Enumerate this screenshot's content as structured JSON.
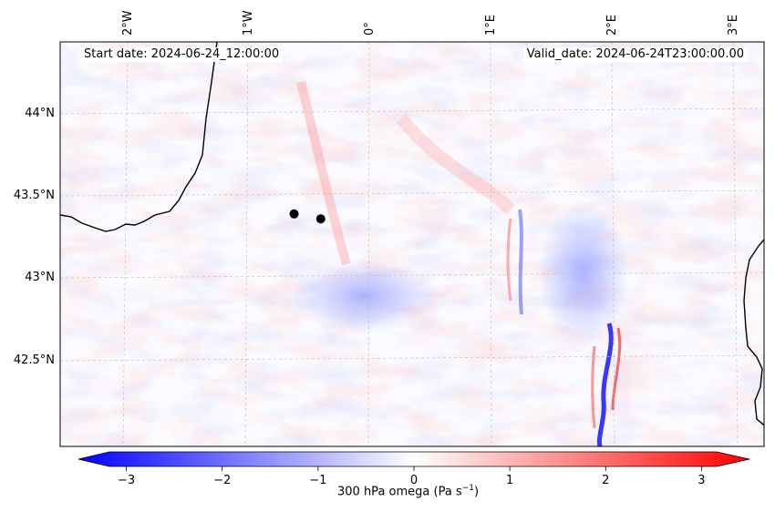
{
  "map": {
    "start_label": "Start date: 2024-06-24_12:00:00",
    "valid_label": "Valid_date: 2024-06-24T23:00:00.00",
    "lon_ticks": [
      "2°W",
      "1°W",
      "0°",
      "1°E",
      "2°E",
      "3°E"
    ],
    "lat_ticks": [
      "44°N",
      "43.5°N",
      "43°N",
      "42.5°N"
    ],
    "points": [
      {
        "lon": -0.62,
        "lat": 43.39
      },
      {
        "lon": -0.4,
        "lat": 43.36
      }
    ],
    "colors": {
      "negative": "#0000ff",
      "zero": "#ffffff",
      "positive": "#ff0000",
      "coast": "#000000",
      "grid": "#bbbbbb"
    }
  },
  "colorbar": {
    "label_prefix": "300 hPa omega (Pa s",
    "label_exponent": "−1",
    "label_suffix": ")",
    "ticks": [
      "−3",
      "−2",
      "−1",
      "0",
      "1",
      "2",
      "3"
    ],
    "range": [
      -3.5,
      3.5
    ]
  }
}
